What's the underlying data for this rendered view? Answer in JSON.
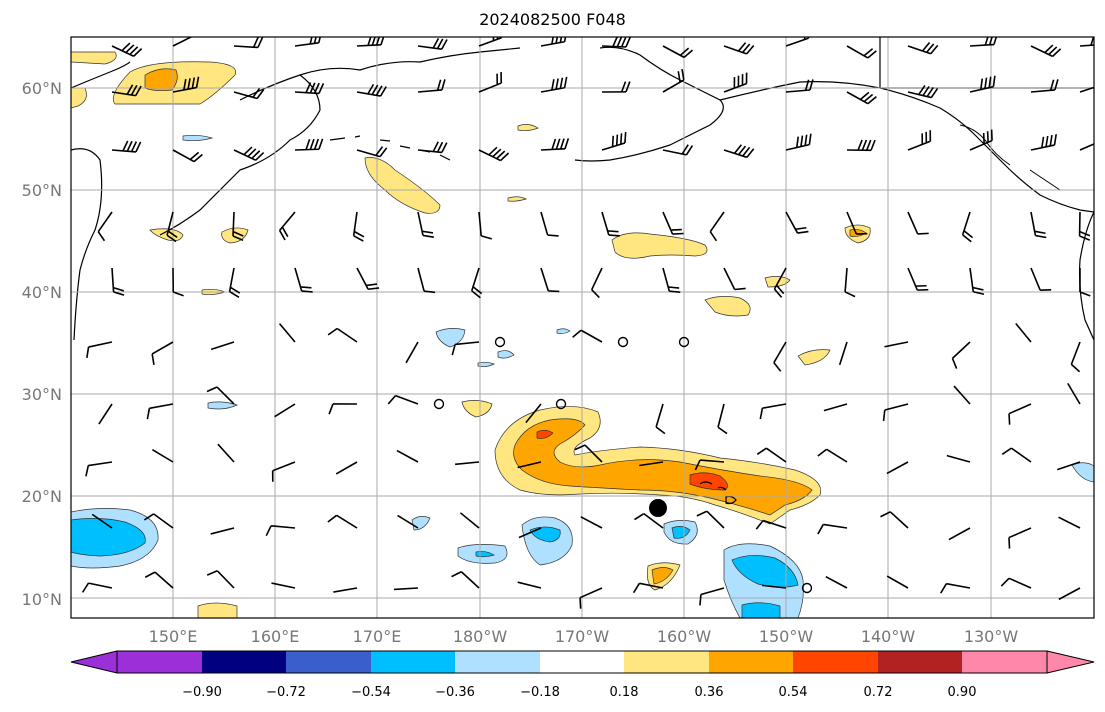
{
  "title": "2024082500 F048",
  "lat_labels": [
    "60°N",
    "50°N",
    "40°N",
    "30°N",
    "20°N",
    "10°N"
  ],
  "lon_labels": [
    "150°E",
    "160°E",
    "170°E",
    "180°W",
    "170°W",
    "160°W",
    "150°W",
    "140°W",
    "130°W"
  ],
  "colorbar": {
    "labels": [
      "−0.90",
      "−0.72",
      "−0.54",
      "−0.36",
      "−0.18",
      "0.18",
      "0.36",
      "0.54",
      "0.72",
      "0.90"
    ],
    "colors": [
      "#9b30d9",
      "#000080",
      "#3a5fcd",
      "#00bfff",
      "#b0e0ff",
      "#ffffff",
      "#ffe680",
      "#ffa500",
      "#ff4500",
      "#b22222",
      "#ff88aa"
    ]
  },
  "legend_colors": {
    "weak_positive": "#ffe680",
    "moderate_positive": "#ffa500",
    "strong_positive": "#ff4500",
    "weak_negative": "#b0e0ff",
    "moderate_negative": "#00bfff"
  },
  "markers": [
    {
      "name": "storm-position-marker",
      "lon": -162.7,
      "lat": 18.8
    }
  ]
}
